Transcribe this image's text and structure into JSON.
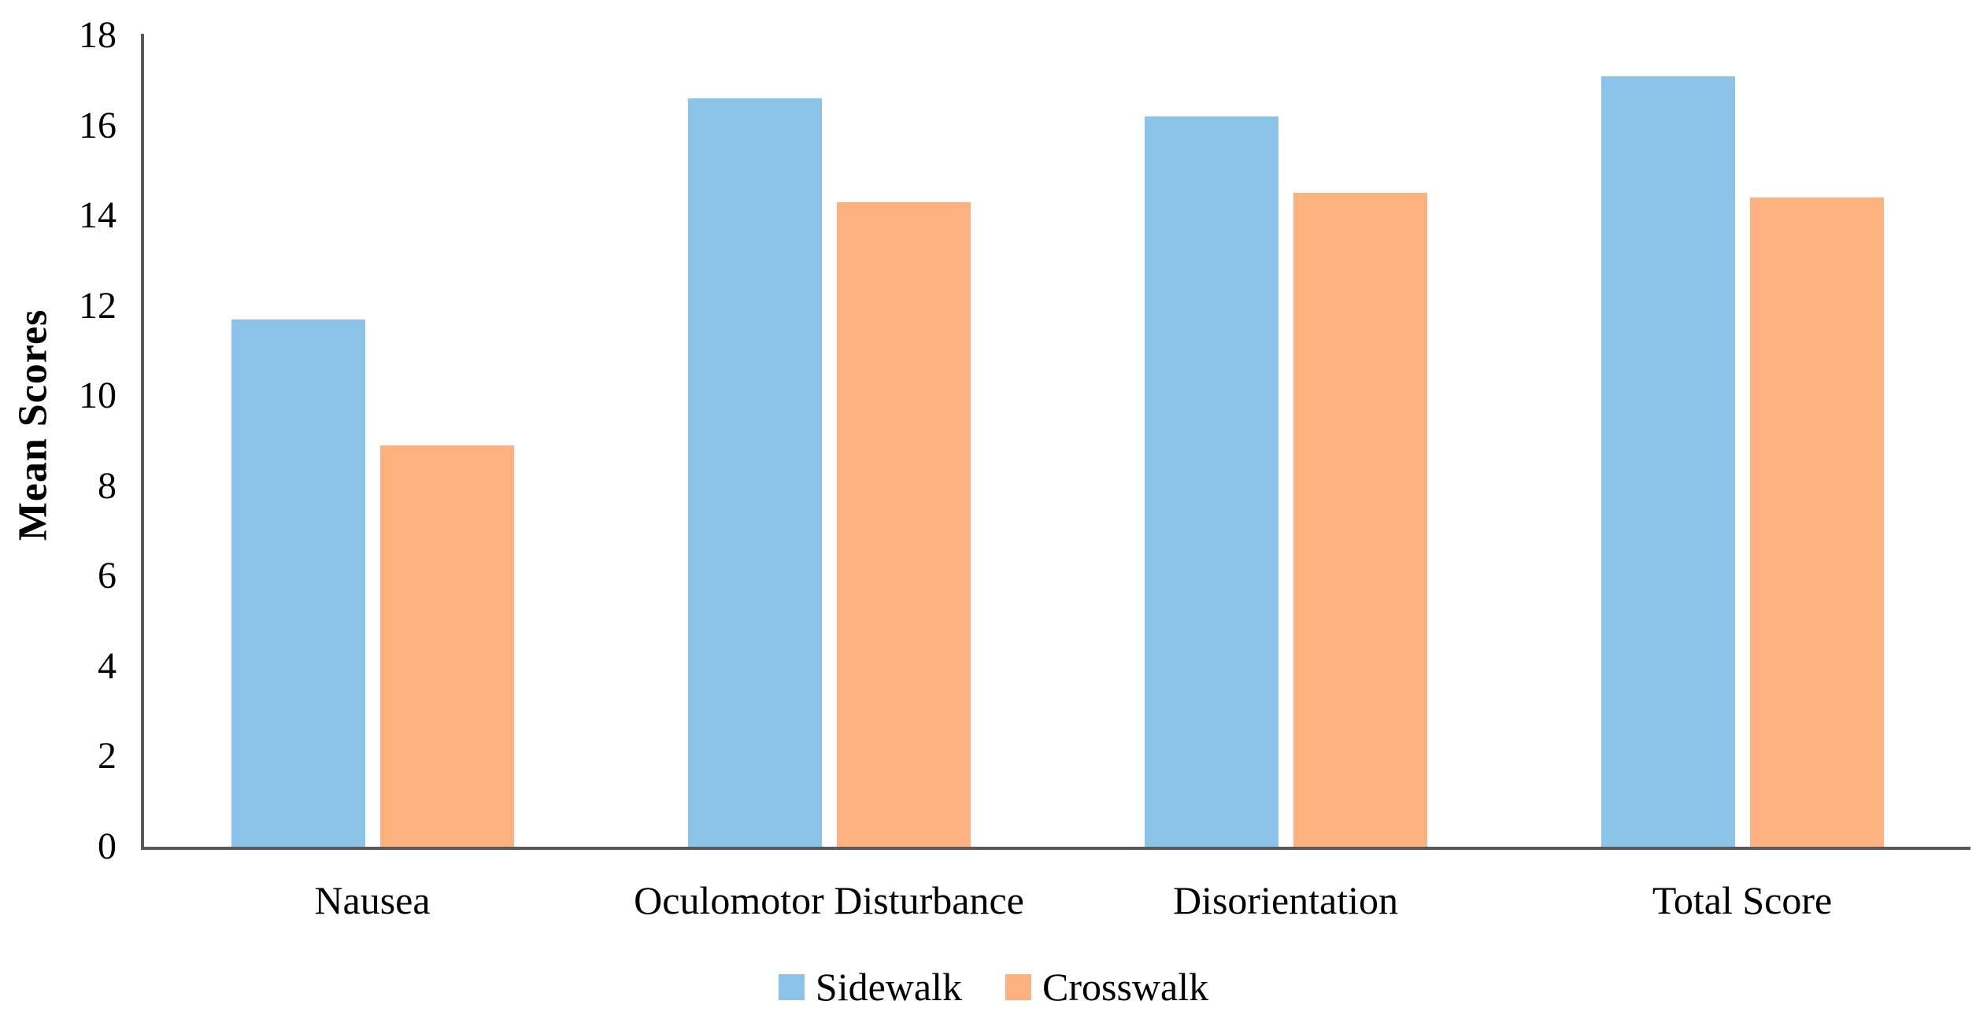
{
  "chart_data": {
    "type": "bar",
    "title": "",
    "xlabel": "",
    "ylabel": "Mean Scores",
    "categories": [
      "Nausea",
      "Oculomotor Disturbance",
      "Disorientation",
      "Total Score"
    ],
    "series": [
      {
        "name": "Sidewalk",
        "color": "#8CC4E9",
        "values": [
          11.7,
          16.6,
          16.2,
          17.1
        ]
      },
      {
        "name": "Crosswalk",
        "color": "#FCB17E",
        "values": [
          8.9,
          14.3,
          14.5,
          14.4
        ]
      }
    ],
    "ylim": [
      0,
      18
    ],
    "ytick_step": 2,
    "ytick_labels": [
      "0",
      "2",
      "4",
      "6",
      "8",
      "10",
      "12",
      "14",
      "16",
      "18"
    ],
    "grid": false,
    "legend_position": "bottom",
    "axis_color": "#595959",
    "text_color": "#000000",
    "background_color": "#FFFFFF"
  }
}
